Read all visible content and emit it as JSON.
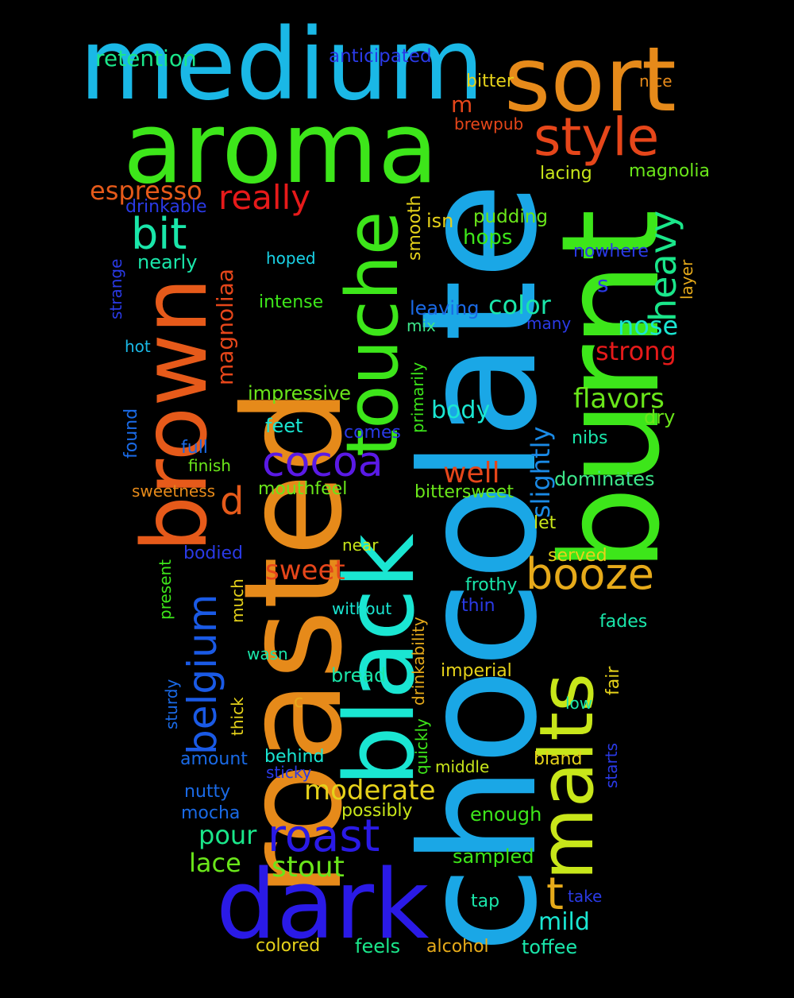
{
  "background": "#000000",
  "words": [
    {
      "text": "chocolate",
      "color": "#1aa7e6"
    },
    {
      "text": "roasted",
      "color": "#e68a1a"
    },
    {
      "text": "burnt",
      "color": "#3de61a"
    },
    {
      "text": "black",
      "color": "#1ae6d2"
    },
    {
      "text": "medium",
      "color": "#1ab8e6"
    },
    {
      "text": "aroma",
      "color": "#3de61a"
    },
    {
      "text": "brown",
      "color": "#e65a1a"
    },
    {
      "text": "dark",
      "color": "#2a1ae6"
    },
    {
      "text": "malts",
      "color": "#c8e61a"
    },
    {
      "text": "sort",
      "color": "#e68a1a"
    },
    {
      "text": "touche",
      "color": "#3de61a"
    },
    {
      "text": "style",
      "color": "#e6461a"
    },
    {
      "text": "booze",
      "color": "#e6aa1a"
    },
    {
      "text": "roast",
      "color": "#2a1ae6"
    },
    {
      "text": "cocoa",
      "color": "#5a1ae6"
    },
    {
      "text": "bit",
      "color": "#1ae6aa"
    },
    {
      "text": "heavy",
      "color": "#1ae68a"
    },
    {
      "text": "belgium",
      "color": "#1a5ae6"
    },
    {
      "text": "really",
      "color": "#e61a1a"
    },
    {
      "text": "moderate",
      "color": "#e6d21a"
    },
    {
      "text": "t",
      "color": "#e6aa1a"
    },
    {
      "text": "espresso",
      "color": "#e65a1a"
    },
    {
      "text": "d",
      "color": "#e65a1a"
    },
    {
      "text": "flavors",
      "color": "#6ae61a"
    },
    {
      "text": "sweet",
      "color": "#e6461a"
    },
    {
      "text": "stout",
      "color": "#6ae61a"
    },
    {
      "text": "well",
      "color": "#e6461a"
    },
    {
      "text": "color",
      "color": "#1ae6aa"
    },
    {
      "text": "strong",
      "color": "#e61a1a"
    },
    {
      "text": "magnoliaa",
      "color": "#e6461a"
    },
    {
      "text": "nose",
      "color": "#1ae6d2"
    },
    {
      "text": "slightly",
      "color": "#1a8ae6"
    },
    {
      "text": "pour",
      "color": "#1ae68a"
    },
    {
      "text": "lace",
      "color": "#6ae61a"
    },
    {
      "text": "mild",
      "color": "#1ae6d2"
    },
    {
      "text": "body",
      "color": "#1ae6d2"
    },
    {
      "text": "retention",
      "color": "#1ae68a"
    },
    {
      "text": "anticipated",
      "color": "#2a3ae6"
    },
    {
      "text": "bitter",
      "color": "#e6d21a"
    },
    {
      "text": "nice",
      "color": "#e68a1a"
    },
    {
      "text": "m",
      "color": "#e6461a"
    },
    {
      "text": "brewpub",
      "color": "#e6461a"
    },
    {
      "text": "lacing",
      "color": "#c8e61a"
    },
    {
      "text": "magnolia",
      "color": "#6ae61a"
    },
    {
      "text": "drinkable",
      "color": "#2a3ae6"
    },
    {
      "text": "pudding",
      "color": "#6ae61a"
    },
    {
      "text": "isn",
      "color": "#e6d21a"
    },
    {
      "text": "hops",
      "color": "#3de61a"
    },
    {
      "text": "smooth",
      "color": "#e6d21a"
    },
    {
      "text": "nowhere",
      "color": "#2a3ae6"
    },
    {
      "text": "layer",
      "color": "#e6aa1a"
    },
    {
      "text": "nearly",
      "color": "#1ae6aa"
    },
    {
      "text": "hoped",
      "color": "#1ad2e6"
    },
    {
      "text": "s",
      "color": "#2a3ae6"
    },
    {
      "text": "strange",
      "color": "#2a3ae6"
    },
    {
      "text": "intense",
      "color": "#3de61a"
    },
    {
      "text": "leaving",
      "color": "#1a6ae6"
    },
    {
      "text": "mix",
      "color": "#3de68a"
    },
    {
      "text": "many",
      "color": "#2a3ae6"
    },
    {
      "text": "hot",
      "color": "#1ab8e6"
    },
    {
      "text": "primarily",
      "color": "#3de61a"
    },
    {
      "text": "impressive",
      "color": "#6ae61a"
    },
    {
      "text": "dry",
      "color": "#6ae61a"
    },
    {
      "text": "feet",
      "color": "#1ae6d2"
    },
    {
      "text": "found",
      "color": "#1a6ae6"
    },
    {
      "text": "comes",
      "color": "#2a3ae6"
    },
    {
      "text": "full",
      "color": "#1a6ae6"
    },
    {
      "text": "finish",
      "color": "#6ae61a"
    },
    {
      "text": "nibs",
      "color": "#1ae6aa"
    },
    {
      "text": "dominates",
      "color": "#3de68a"
    },
    {
      "text": "sweetness",
      "color": "#e68a1a"
    },
    {
      "text": "mouthfeel",
      "color": "#6ae61a"
    },
    {
      "text": "bittersweet",
      "color": "#6ae61a"
    },
    {
      "text": "let",
      "color": "#c8e61a"
    },
    {
      "text": "bodied",
      "color": "#2a3ae6"
    },
    {
      "text": "near",
      "color": "#c8e61a"
    },
    {
      "text": "served",
      "color": "#e6d21a"
    },
    {
      "text": "present",
      "color": "#3de61a"
    },
    {
      "text": "much",
      "color": "#e6d21a"
    },
    {
      "text": "drinkability",
      "color": "#e6aa1a"
    },
    {
      "text": "frothy",
      "color": "#1ae6aa"
    },
    {
      "text": "thin",
      "color": "#2a3ae6"
    },
    {
      "text": "without",
      "color": "#1ae6d2"
    },
    {
      "text": "fades",
      "color": "#1ae6aa"
    },
    {
      "text": "wasn",
      "color": "#1ae6aa"
    },
    {
      "text": "imperial",
      "color": "#e6d21a"
    },
    {
      "text": "fair",
      "color": "#e6d21a"
    },
    {
      "text": "bread",
      "color": "#1ae6aa"
    },
    {
      "text": "sturdy",
      "color": "#1a6ae6"
    },
    {
      "text": "thick",
      "color": "#e6d21a"
    },
    {
      "text": "c",
      "color": "#e6aa1a"
    },
    {
      "text": "quickly",
      "color": "#3de61a"
    },
    {
      "text": "low",
      "color": "#1ae6aa"
    },
    {
      "text": "starts",
      "color": "#2a3ae6"
    },
    {
      "text": "behind",
      "color": "#1ae6d2"
    },
    {
      "text": "amount",
      "color": "#1a6ae6"
    },
    {
      "text": "sticky",
      "color": "#2a3ae6"
    },
    {
      "text": "middle",
      "color": "#c8e61a"
    },
    {
      "text": "bland",
      "color": "#e6d21a"
    },
    {
      "text": "nutty",
      "color": "#1a6ae6"
    },
    {
      "text": "mocha",
      "color": "#1a6ae6"
    },
    {
      "text": "possibly",
      "color": "#c8e61a"
    },
    {
      "text": "enough",
      "color": "#3de61a"
    },
    {
      "text": "sampled",
      "color": "#3de61a"
    },
    {
      "text": "tap",
      "color": "#1ae6aa"
    },
    {
      "text": "take",
      "color": "#2a3ae6"
    },
    {
      "text": "colored",
      "color": "#e6d21a"
    },
    {
      "text": "feels",
      "color": "#1ae68a"
    },
    {
      "text": "alcohol",
      "color": "#e6aa1a"
    },
    {
      "text": "toffee",
      "color": "#1ae6aa"
    }
  ]
}
